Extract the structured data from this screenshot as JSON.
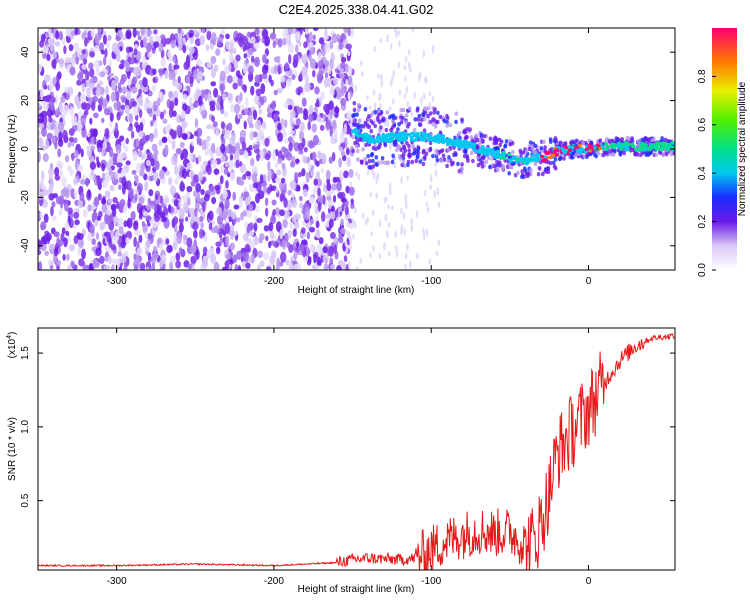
{
  "title": "C2E4.2025.338.04.41.G02",
  "chart_data": [
    {
      "type": "heatmap",
      "xlabel": "Height of straight line (km)",
      "ylabel": "Frequency (Hz)",
      "xlim": [
        -350,
        55
      ],
      "ylim": [
        -50,
        50
      ],
      "x_ticks": [
        -300,
        -200,
        -100,
        0
      ],
      "y_ticks": [
        -40,
        -20,
        0,
        20,
        40
      ],
      "ridge": {
        "x": [
          -150,
          -140,
          -120,
          -100,
          -80,
          -60,
          -40,
          -35,
          -30,
          -20,
          -10,
          0,
          10,
          20,
          55
        ],
        "y": [
          8,
          4,
          5,
          5,
          2,
          -2,
          -5,
          -3,
          -4,
          -1,
          0,
          0,
          1,
          1,
          1
        ]
      },
      "colorbar": {
        "label": "Normalized spectral amplitude",
        "range": [
          0,
          1
        ],
        "ticks": [
          "0.0",
          "0.2",
          "0.4",
          "0.6",
          "0.8"
        ]
      }
    },
    {
      "type": "line",
      "xlabel": "Height of straight line (km)",
      "ylabel": "SNR (10 * v/v)",
      "y_multiplier": "(x10",
      "y_multiplier_exp": "4",
      "xlim": [
        -350,
        55
      ],
      "ylim": [
        0.03,
        1.67
      ],
      "x_ticks": [
        -300,
        -200,
        -100,
        0
      ],
      "y_ticks": [
        "0.5",
        "1.0",
        "1.5"
      ],
      "line_color": "#e8191a",
      "series": [
        {
          "x": [
            -350,
            -300,
            -250,
            -200,
            -160,
            -150,
            -140,
            -120,
            -110,
            -100,
            -90,
            -80,
            -70,
            -60,
            -50,
            -40,
            -35,
            -30,
            -25,
            -20,
            -15,
            -10,
            -5,
            0,
            10,
            20,
            30,
            40,
            55
          ],
          "values": [
            0.06,
            0.06,
            0.07,
            0.06,
            0.08,
            0.1,
            0.11,
            0.1,
            0.11,
            0.17,
            0.23,
            0.27,
            0.3,
            0.28,
            0.29,
            0.2,
            0.22,
            0.35,
            0.55,
            0.82,
            0.9,
            0.98,
            1.05,
            1.12,
            1.3,
            1.45,
            1.55,
            1.6,
            1.62
          ]
        }
      ]
    }
  ]
}
